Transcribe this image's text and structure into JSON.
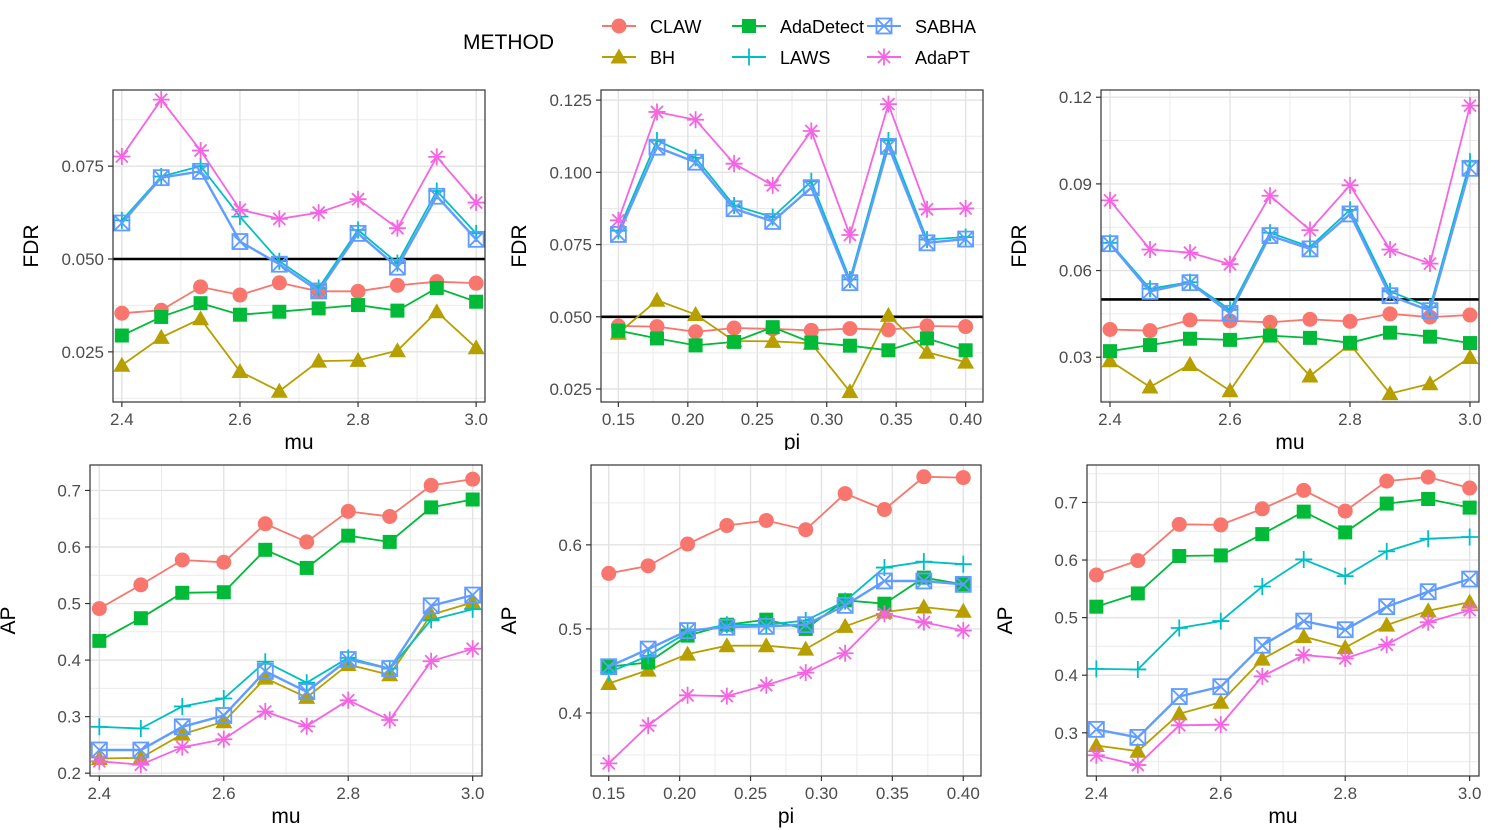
{
  "legend": {
    "title": "METHOD",
    "entries": [
      {
        "name": "CLAW",
        "color": "#F8766D",
        "shape": "circle"
      },
      {
        "name": "BH",
        "color": "#B79F00",
        "shape": "triangle"
      },
      {
        "name": "AdaDetect",
        "color": "#00BA38",
        "shape": "square"
      },
      {
        "name": "LAWS",
        "color": "#00BFC4",
        "shape": "plus"
      },
      {
        "name": "SABHA",
        "color": "#619CFF",
        "shape": "boxx"
      },
      {
        "name": "AdaPT",
        "color": "#F564E3",
        "shape": "asterisk"
      }
    ]
  },
  "chart_data": [
    {
      "type": "line",
      "xlabel": "mu",
      "ylabel": "FDR",
      "xlim": [
        2.385,
        3.015
      ],
      "ylim": [
        0.0115,
        0.0955
      ],
      "xticks": [
        2.4,
        2.6,
        2.8,
        3.0
      ],
      "xtick_labels": [
        "2.4",
        "2.6",
        "2.8",
        "3.0"
      ],
      "yticks": [
        0.025,
        0.05,
        0.075
      ],
      "ytick_labels": [
        "0.025",
        "0.050",
        "0.075"
      ],
      "hline": 0.05,
      "grid": true,
      "x": [
        2.4,
        2.4667,
        2.5333,
        2.6,
        2.6667,
        2.7333,
        2.8,
        2.8667,
        2.9333,
        3.0
      ],
      "series": [
        {
          "name": "CLAW",
          "values": [
            0.0354,
            0.0362,
            0.0425,
            0.0403,
            0.0436,
            0.0413,
            0.0413,
            0.0429,
            0.0439,
            0.0435
          ]
        },
        {
          "name": "BH",
          "values": [
            0.0214,
            0.0289,
            0.0339,
            0.0197,
            0.0144,
            0.0225,
            0.0227,
            0.0253,
            0.0358,
            0.0261
          ]
        },
        {
          "name": "AdaDetect",
          "values": [
            0.0294,
            0.0344,
            0.0381,
            0.035,
            0.0358,
            0.0367,
            0.0376,
            0.0361,
            0.0422,
            0.0385
          ]
        },
        {
          "name": "LAWS",
          "values": [
            0.0604,
            0.0722,
            0.075,
            0.0614,
            0.0494,
            0.0422,
            0.0578,
            0.0489,
            0.0683,
            0.0569
          ]
        },
        {
          "name": "SABHA",
          "values": [
            0.0597,
            0.0719,
            0.0736,
            0.0547,
            0.0486,
            0.0414,
            0.0569,
            0.0478,
            0.0669,
            0.0553
          ]
        },
        {
          "name": "AdaPT",
          "values": [
            0.0776,
            0.0929,
            0.0792,
            0.0633,
            0.0608,
            0.0625,
            0.0661,
            0.0583,
            0.0775,
            0.0652
          ]
        }
      ]
    },
    {
      "type": "line",
      "xlabel": "pi",
      "ylabel": "FDR",
      "xlim": [
        0.1375,
        0.4125
      ],
      "ylim": [
        0.0205,
        0.1285
      ],
      "xticks": [
        0.15,
        0.2,
        0.25,
        0.3,
        0.35,
        0.4
      ],
      "xtick_labels": [
        "0.15",
        "0.20",
        "0.25",
        "0.30",
        "0.35",
        "0.40"
      ],
      "yticks": [
        0.025,
        0.05,
        0.075,
        0.1,
        0.125
      ],
      "ytick_labels": [
        "0.025",
        "0.050",
        "0.075",
        "0.100",
        "0.125"
      ],
      "hline": 0.05,
      "grid": true,
      "x": [
        0.15,
        0.1778,
        0.2056,
        0.2333,
        0.2611,
        0.2889,
        0.3167,
        0.3444,
        0.3722,
        0.4
      ],
      "series": [
        {
          "name": "CLAW",
          "values": [
            0.0468,
            0.0466,
            0.0448,
            0.0461,
            0.0458,
            0.0453,
            0.0459,
            0.0455,
            0.0468,
            0.0466
          ]
        },
        {
          "name": "BH",
          "values": [
            0.0443,
            0.0557,
            0.0508,
            0.0416,
            0.0415,
            0.0408,
            0.0241,
            0.0505,
            0.0377,
            0.0343
          ]
        },
        {
          "name": "AdaDetect",
          "values": [
            0.0452,
            0.0425,
            0.0401,
            0.0413,
            0.0464,
            0.0411,
            0.04,
            0.0384,
            0.0425,
            0.0384
          ]
        },
        {
          "name": "LAWS",
          "values": [
            0.0798,
            0.111,
            0.105,
            0.0885,
            0.0845,
            0.0969,
            0.0629,
            0.111,
            0.0767,
            0.0776
          ]
        },
        {
          "name": "SABHA",
          "values": [
            0.0785,
            0.1087,
            0.1035,
            0.0874,
            0.083,
            0.0947,
            0.0618,
            0.109,
            0.0756,
            0.0769
          ]
        },
        {
          "name": "AdaPT",
          "values": [
            0.0834,
            0.1209,
            0.1182,
            0.103,
            0.0955,
            0.1143,
            0.0783,
            0.1236,
            0.0872,
            0.0875
          ]
        }
      ]
    },
    {
      "type": "line",
      "xlabel": "mu",
      "ylabel": "FDR",
      "xlim": [
        2.385,
        3.015
      ],
      "ylim": [
        0.0145,
        0.1225
      ],
      "xticks": [
        2.4,
        2.6,
        2.8,
        3.0
      ],
      "xtick_labels": [
        "2.4",
        "2.6",
        "2.8",
        "3.0"
      ],
      "yticks": [
        0.03,
        0.06,
        0.09,
        0.12
      ],
      "ytick_labels": [
        "0.03",
        "0.06",
        "0.09",
        "0.12"
      ],
      "hline": 0.05,
      "grid": true,
      "x": [
        2.4,
        2.4667,
        2.5333,
        2.6,
        2.6667,
        2.7333,
        2.8,
        2.8667,
        2.9333,
        3.0
      ],
      "series": [
        {
          "name": "CLAW",
          "values": [
            0.0396,
            0.0392,
            0.0429,
            0.0426,
            0.0421,
            0.0431,
            0.0424,
            0.045,
            0.0439,
            0.0446
          ]
        },
        {
          "name": "BH",
          "values": [
            0.0288,
            0.0197,
            0.0275,
            0.0184,
            0.0385,
            0.0235,
            0.0345,
            0.0174,
            0.0208,
            0.0299
          ]
        },
        {
          "name": "AdaDetect",
          "values": [
            0.0321,
            0.0342,
            0.0364,
            0.036,
            0.0375,
            0.0367,
            0.035,
            0.0385,
            0.0371,
            0.0349
          ]
        },
        {
          "name": "LAWS",
          "values": [
            0.0696,
            0.0537,
            0.056,
            0.0464,
            0.0731,
            0.0682,
            0.081,
            0.0528,
            0.0473,
            0.0977
          ]
        },
        {
          "name": "SABHA",
          "values": [
            0.0693,
            0.0528,
            0.0558,
            0.0452,
            0.0721,
            0.0675,
            0.0796,
            0.0513,
            0.0461,
            0.0954
          ]
        },
        {
          "name": "AdaPT",
          "values": [
            0.0843,
            0.0673,
            0.0662,
            0.0622,
            0.0859,
            0.074,
            0.0895,
            0.0673,
            0.0624,
            0.1171
          ]
        }
      ]
    },
    {
      "type": "line",
      "xlabel": "mu",
      "ylabel": "AP",
      "xlim": [
        2.385,
        3.015
      ],
      "ylim": [
        0.195,
        0.745
      ],
      "xticks": [
        2.4,
        2.6,
        2.8,
        3.0
      ],
      "xtick_labels": [
        "2.4",
        "2.6",
        "2.8",
        "3.0"
      ],
      "yticks": [
        0.2,
        0.3,
        0.4,
        0.5,
        0.6,
        0.7
      ],
      "ytick_labels": [
        "0.2",
        "0.3",
        "0.4",
        "0.5",
        "0.6",
        "0.7"
      ],
      "grid": true,
      "x": [
        2.4,
        2.4667,
        2.5333,
        2.6,
        2.6667,
        2.7333,
        2.8,
        2.8667,
        2.9333,
        3.0
      ],
      "series": [
        {
          "name": "CLAW",
          "values": [
            0.491,
            0.533,
            0.577,
            0.573,
            0.641,
            0.609,
            0.663,
            0.654,
            0.709,
            0.72
          ]
        },
        {
          "name": "BH",
          "values": [
            0.226,
            0.227,
            0.269,
            0.291,
            0.368,
            0.334,
            0.392,
            0.374,
            0.48,
            0.502
          ]
        },
        {
          "name": "AdaDetect",
          "values": [
            0.434,
            0.474,
            0.519,
            0.52,
            0.595,
            0.563,
            0.62,
            0.609,
            0.67,
            0.684
          ]
        },
        {
          "name": "LAWS",
          "values": [
            0.282,
            0.279,
            0.318,
            0.332,
            0.397,
            0.36,
            0.404,
            0.385,
            0.471,
            0.49
          ]
        },
        {
          "name": "SABHA",
          "values": [
            0.241,
            0.241,
            0.282,
            0.302,
            0.38,
            0.344,
            0.401,
            0.385,
            0.496,
            0.515
          ]
        },
        {
          "name": "AdaPT",
          "values": [
            0.221,
            0.215,
            0.246,
            0.26,
            0.309,
            0.283,
            0.329,
            0.294,
            0.398,
            0.42
          ]
        }
      ]
    },
    {
      "type": "line",
      "xlabel": "pi",
      "ylabel": "AP",
      "xlim": [
        0.1375,
        0.4125
      ],
      "ylim": [
        0.325,
        0.695
      ],
      "xticks": [
        0.15,
        0.2,
        0.25,
        0.3,
        0.35,
        0.4
      ],
      "xtick_labels": [
        "0.15",
        "0.20",
        "0.25",
        "0.30",
        "0.35",
        "0.40"
      ],
      "yticks": [
        0.4,
        0.5,
        0.6
      ],
      "ytick_labels": [
        "0.4",
        "0.5",
        "0.6"
      ],
      "grid": true,
      "x": [
        0.15,
        0.1778,
        0.2056,
        0.2333,
        0.2611,
        0.2889,
        0.3167,
        0.3444,
        0.3722,
        0.4
      ],
      "series": [
        {
          "name": "CLAW",
          "values": [
            0.566,
            0.575,
            0.601,
            0.623,
            0.629,
            0.618,
            0.661,
            0.642,
            0.681,
            0.68
          ]
        },
        {
          "name": "BH",
          "values": [
            0.435,
            0.451,
            0.47,
            0.48,
            0.48,
            0.476,
            0.503,
            0.52,
            0.526,
            0.521
          ]
        },
        {
          "name": "AdaDetect",
          "values": [
            0.455,
            0.46,
            0.492,
            0.505,
            0.511,
            0.5,
            0.534,
            0.53,
            0.561,
            0.553
          ]
        },
        {
          "name": "LAWS",
          "values": [
            0.448,
            0.468,
            0.496,
            0.505,
            0.505,
            0.51,
            0.533,
            0.573,
            0.58,
            0.577
          ]
        },
        {
          "name": "SABHA",
          "values": [
            0.455,
            0.476,
            0.498,
            0.502,
            0.503,
            0.505,
            0.528,
            0.557,
            0.557,
            0.553
          ]
        },
        {
          "name": "AdaPT",
          "values": [
            0.34,
            0.385,
            0.421,
            0.42,
            0.433,
            0.448,
            0.471,
            0.518,
            0.508,
            0.498
          ]
        }
      ]
    },
    {
      "type": "line",
      "xlabel": "mu",
      "ylabel": "AP",
      "xlim": [
        2.385,
        3.015
      ],
      "ylim": [
        0.225,
        0.765
      ],
      "xticks": [
        2.4,
        2.6,
        2.8,
        3.0
      ],
      "xtick_labels": [
        "2.4",
        "2.6",
        "2.8",
        "3.0"
      ],
      "yticks": [
        0.3,
        0.4,
        0.5,
        0.6,
        0.7
      ],
      "ytick_labels": [
        "0.3",
        "0.4",
        "0.5",
        "0.6",
        "0.7"
      ],
      "grid": true,
      "x": [
        2.4,
        2.4667,
        2.5333,
        2.6,
        2.6667,
        2.7333,
        2.8,
        2.8667,
        2.9333,
        3.0
      ],
      "series": [
        {
          "name": "CLAW",
          "values": [
            0.574,
            0.599,
            0.662,
            0.661,
            0.689,
            0.721,
            0.685,
            0.737,
            0.744,
            0.725
          ]
        },
        {
          "name": "BH",
          "values": [
            0.278,
            0.268,
            0.333,
            0.353,
            0.428,
            0.467,
            0.448,
            0.487,
            0.512,
            0.527
          ]
        },
        {
          "name": "AdaDetect",
          "values": [
            0.519,
            0.542,
            0.607,
            0.608,
            0.645,
            0.684,
            0.648,
            0.698,
            0.706,
            0.691
          ]
        },
        {
          "name": "LAWS",
          "values": [
            0.411,
            0.41,
            0.482,
            0.494,
            0.554,
            0.601,
            0.572,
            0.615,
            0.637,
            0.64
          ]
        },
        {
          "name": "SABHA",
          "values": [
            0.306,
            0.292,
            0.363,
            0.38,
            0.452,
            0.494,
            0.479,
            0.519,
            0.545,
            0.567
          ]
        },
        {
          "name": "AdaPT",
          "values": [
            0.261,
            0.244,
            0.313,
            0.314,
            0.398,
            0.435,
            0.429,
            0.453,
            0.492,
            0.513
          ]
        }
      ]
    }
  ]
}
